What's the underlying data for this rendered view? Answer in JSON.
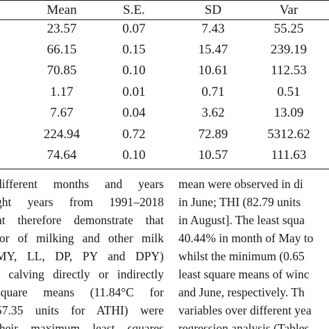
{
  "table": {
    "headers": [
      "Mean",
      "S.E.",
      "SD",
      "Var"
    ],
    "rows": [
      [
        "23.57",
        "0.07",
        "7.43",
        "55.25"
      ],
      [
        "66.15",
        "0.15",
        "15.47",
        "239.19"
      ],
      [
        "70.85",
        "0.10",
        "10.61",
        "112.53"
      ],
      [
        "1.17",
        "0.01",
        "0.71",
        "0.51"
      ],
      [
        "7.67",
        "0.04",
        "3.62",
        "13.09"
      ],
      [
        "224.94",
        "0.72",
        "72.89",
        "5312.62"
      ],
      [
        "74.64",
        "0.10",
        "10.57",
        "111.63"
      ]
    ]
  },
  "body_text": {
    "left_column": [
      "different months and years",
      "ght years from 1991–2018",
      "ht therefore demonstrate that",
      "ior of milking and other milk",
      "MY, LL, DP, PY and DPY)",
      "f calving directly or indirectly",
      "square means (11.84°C for",
      "57.35 units for ATHI) were",
      "their maximum least squares"
    ],
    "right_column": [
      "mean were observed in di",
      "in June; THI (82.79 units",
      "in August]. The least squa",
      "40.44% in month of May to",
      "whilst the minimum (0.65",
      "least square means of winc",
      "and June, respectively. Th",
      "variables over different yea",
      "regression analysis (Tables"
    ]
  }
}
